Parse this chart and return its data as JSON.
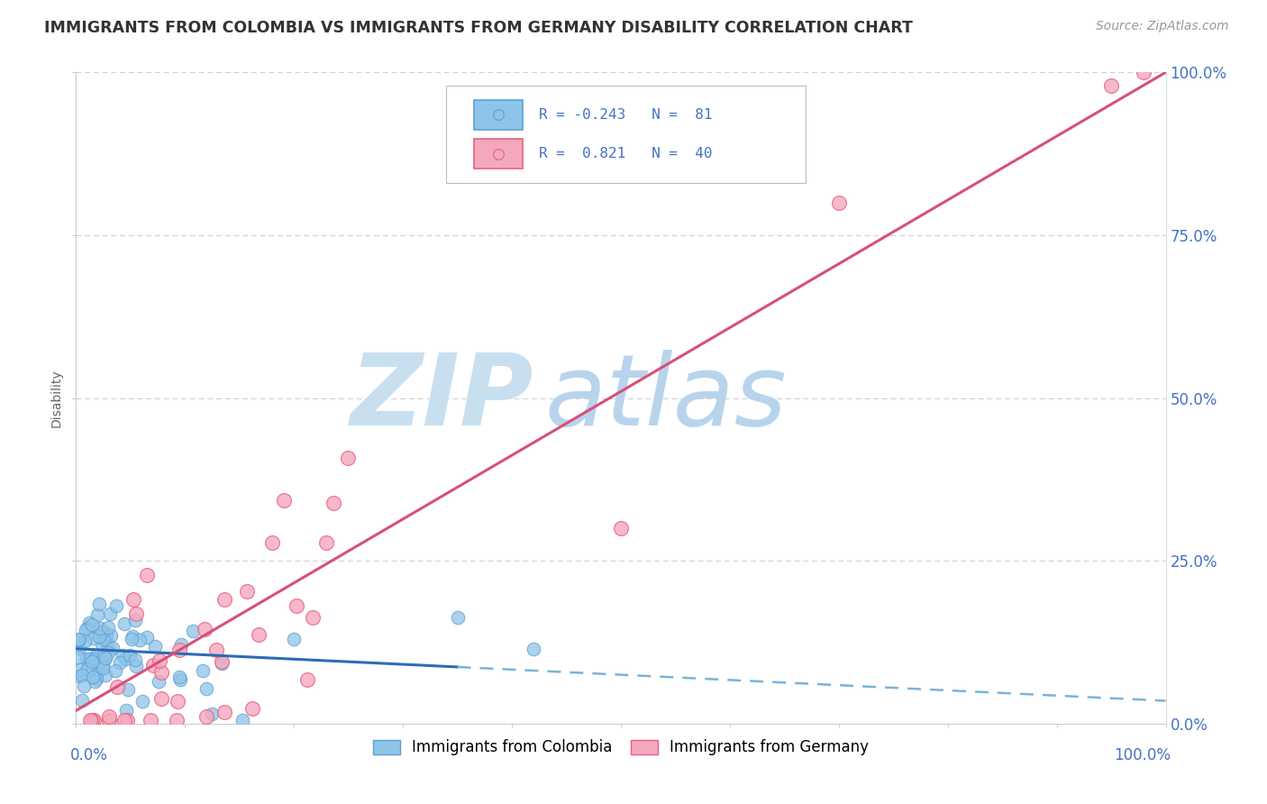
{
  "title": "IMMIGRANTS FROM COLOMBIA VS IMMIGRANTS FROM GERMANY DISABILITY CORRELATION CHART",
  "source": "Source: ZipAtlas.com",
  "colombia": {
    "label": "Immigrants from Colombia",
    "color": "#8ec4e8",
    "edge_color": "#5b9fd4",
    "R": -0.243,
    "N": 81
  },
  "germany": {
    "label": "Immigrants from Germany",
    "color": "#f4a8be",
    "edge_color": "#e8607e",
    "R": 0.821,
    "N": 40
  },
  "xlim": [
    0,
    100
  ],
  "ylim": [
    0,
    100
  ],
  "yticks": [
    0,
    25,
    50,
    75,
    100
  ],
  "ytick_labels": [
    "0.0%",
    "25.0%",
    "50.0%",
    "75.0%",
    "100.0%"
  ],
  "xtick_labels": [
    "0.0%",
    "100.0%"
  ],
  "background_color": "#ffffff",
  "grid_color": "#cccccc",
  "title_color": "#333333",
  "axis_label_color": "#4472c4",
  "watermark_zip_color": "#c8dff0",
  "watermark_atlas_color": "#b8d4ec",
  "source_color": "#999999",
  "col_trend_color": "#2a6db5",
  "col_dash_color": "#7ab3d9",
  "ger_trend_color": "#d94f7a"
}
